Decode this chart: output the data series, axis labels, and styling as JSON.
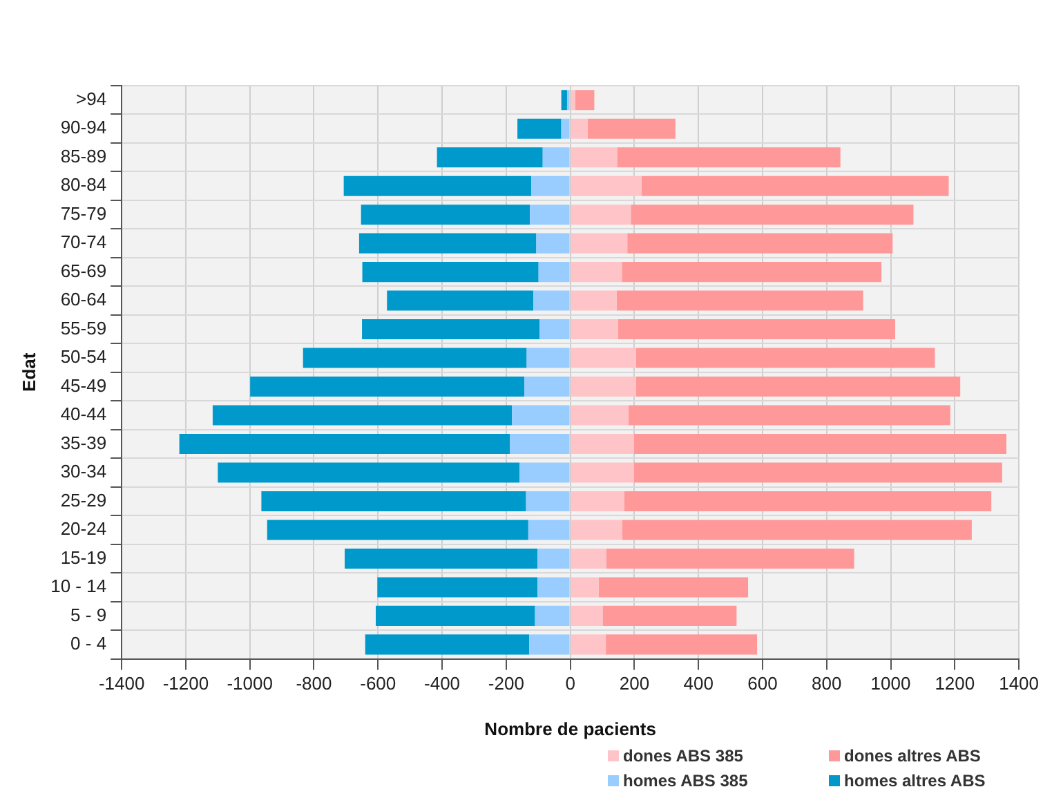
{
  "chart_data": {
    "type": "bar",
    "orientation": "horizontal",
    "stacked": true,
    "xlabel": "Nombre de pacients",
    "ylabel": "Edat",
    "categories": [
      ">94",
      "90-94",
      "85-89",
      "80-84",
      "75-79",
      "70-74",
      "65-69",
      "60-64",
      "55-59",
      "50-54",
      "45-49",
      "40-44",
      "35-39",
      "30-34",
      "25-29",
      "20-24",
      "15-19",
      "10 - 14",
      "5 - 9",
      "0 - 4"
    ],
    "series": [
      {
        "name": "dones ABS 385",
        "color": "#ffc4c8",
        "values": [
          15,
          54,
          146,
          222,
          189,
          178,
          161,
          145,
          149,
          205,
          205,
          182,
          199,
          199,
          168,
          162,
          112,
          89,
          101,
          111
        ]
      },
      {
        "name": "dones altres ABS",
        "color": "#ff9999",
        "values": [
          60,
          274,
          697,
          959,
          882,
          828,
          810,
          769,
          865,
          933,
          1012,
          1004,
          1162,
          1149,
          1146,
          1091,
          774,
          466,
          418,
          472
        ]
      },
      {
        "name": "homes ABS 385",
        "color": "#99ccff",
        "values": [
          -10,
          -28,
          -86,
          -122,
          -126,
          -106,
          -99,
          -115,
          -96,
          -136,
          -143,
          -182,
          -188,
          -158,
          -138,
          -131,
          -102,
          -102,
          -110,
          -128
        ]
      },
      {
        "name": "homes altres ABS",
        "color": "#0099cc",
        "values": [
          -18,
          -137,
          -330,
          -585,
          -527,
          -553,
          -550,
          -457,
          -554,
          -698,
          -856,
          -934,
          -1032,
          -942,
          -826,
          -815,
          -602,
          -500,
          -497,
          -512
        ]
      }
    ],
    "xlim": [
      -1400,
      1400
    ],
    "xticks": [
      -1400,
      -1200,
      -1000,
      -800,
      -600,
      -400,
      -200,
      0,
      200,
      400,
      600,
      800,
      1000,
      1200,
      1400
    ],
    "grid": true,
    "legend": "bottom right"
  }
}
